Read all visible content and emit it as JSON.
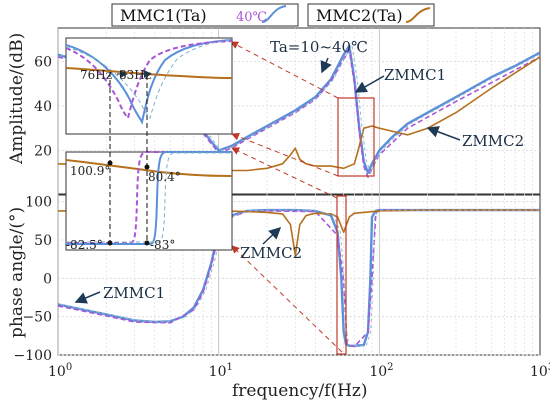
{
  "chart_data": {
    "type": "line",
    "xlabel": "frequency/f(Hz)",
    "x_scale": "log",
    "xlim": [
      1,
      1000
    ],
    "x_ticks": [
      "10^0",
      "10^1",
      "10^2",
      "10^3"
    ],
    "legend": {
      "placement": "top",
      "entries": [
        {
          "name": "MMC1(Ta)",
          "note": "40℃",
          "color": "#5b8fd9"
        },
        {
          "name": "MMC2(Ta)",
          "color": "#b5701c"
        }
      ]
    },
    "panels": [
      {
        "id": "amplitude",
        "ylabel": "Amplitude/(dB)",
        "ylim": [
          0,
          75
        ],
        "y_ticks": [
          20,
          40,
          60
        ],
        "annotations": [
          "Ta=10~40℃",
          "ZMMC1",
          "ZMMC2"
        ],
        "series": [
          {
            "name": "ZMMC1",
            "color": "#5b8fd9",
            "x": [
              1,
              2,
              3,
              5,
              7,
              9,
              10,
              12,
              15,
              20,
              30,
              40,
              50,
              60,
              65,
              70,
              75,
              80,
              85,
              90,
              100,
              120,
              150,
              200,
              300,
              500,
              700,
              1000
            ],
            "y": [
              63,
              57,
              53,
              44,
              34,
              24,
              20,
              22,
              26,
              31,
              38,
              44,
              52,
              63,
              67,
              52,
              30,
              15,
              10,
              14,
              20,
              26,
              32,
              37,
              44,
              53,
              58,
              64
            ]
          },
          {
            "name": "ZMMC1 40℃",
            "color": "#a855d8",
            "x": [
              1,
              2,
              3,
              5,
              7,
              9,
              10,
              12,
              15,
              20,
              30,
              40,
              50,
              60,
              65,
              70,
              75,
              80,
              85,
              90,
              100,
              150,
              300,
              1000
            ],
            "y": [
              62,
              56,
              52,
              43,
              33,
              23,
              19,
              21,
              25,
              30,
              37,
              43,
              51,
              61,
              65,
              50,
              28,
              13,
              8,
              12,
              18,
              30,
              42,
              62
            ]
          },
          {
            "name": "ZMMC2",
            "color": "#b5701c",
            "x": [
              1,
              3,
              5,
              10,
              15,
              20,
              25,
              28,
              30,
              32,
              35,
              40,
              50,
              60,
              70,
              75,
              80,
              90,
              100,
              150,
              200,
              300,
              500,
              1000
            ],
            "y": [
              14,
              13,
              12,
              11,
              11,
              12,
              14,
              18,
              21,
              16,
              14,
              13,
              13,
              12,
              14,
              22,
              30,
              31,
              30,
              27,
              30,
              37,
              48,
              62
            ]
          }
        ]
      },
      {
        "id": "phase",
        "ylabel": "phase angle/(°)",
        "ylim": [
          -100,
          110
        ],
        "y_ticks": [
          -100,
          -50,
          0,
          50,
          100
        ],
        "annotations": [
          "ZMMC1",
          "ZMMC2"
        ],
        "series": [
          {
            "name": "ZMMC1",
            "color": "#5b8fd9",
            "x": [
              1,
              2,
              3,
              4,
              5,
              6,
              7,
              8,
              9,
              10,
              12,
              15,
              20,
              30,
              40,
              50,
              55,
              58,
              60,
              62,
              65,
              70,
              80,
              85,
              88,
              90,
              95,
              100,
              150,
              200,
              300,
              500,
              1000
            ],
            "y": [
              -34,
              -47,
              -55,
              -57,
              -56,
              -50,
              -38,
              -15,
              20,
              62,
              82,
              88,
              89,
              89,
              88,
              82,
              60,
              0,
              -70,
              -86,
              -88,
              -88,
              -87,
              -70,
              0,
              80,
              88,
              89,
              89,
              89,
              89,
              89,
              89
            ]
          },
          {
            "name": "ZMMC1 40℃",
            "color": "#a855d8",
            "x": [
              1,
              2,
              3,
              5,
              7,
              8,
              9,
              10,
              12,
              15,
              20,
              40,
              55,
              60,
              63,
              70,
              85,
              90,
              95,
              100,
              200,
              1000
            ],
            "y": [
              -36,
              -49,
              -57,
              -58,
              -41,
              -18,
              16,
              58,
              80,
              87,
              88,
              87,
              56,
              -4,
              -86,
              -89,
              -70,
              0,
              84,
              89,
              89,
              89
            ]
          },
          {
            "name": "ZMMC2",
            "color": "#b5701c",
            "x": [
              1,
              3,
              5,
              10,
              15,
              20,
              25,
              28,
              30,
              32,
              35,
              40,
              50,
              55,
              60,
              65,
              70,
              80,
              100,
              200,
              500,
              1000
            ],
            "y": [
              88,
              88,
              88,
              88,
              87,
              86,
              84,
              70,
              30,
              70,
              82,
              85,
              84,
              80,
              60,
              80,
              85,
              86,
              88,
              89,
              89,
              89
            ]
          }
        ]
      }
    ],
    "inset_labels": [
      "76Hz",
      "83Hz",
      "100.9°",
      "80.4°",
      "-82.5°",
      "-83°"
    ]
  }
}
